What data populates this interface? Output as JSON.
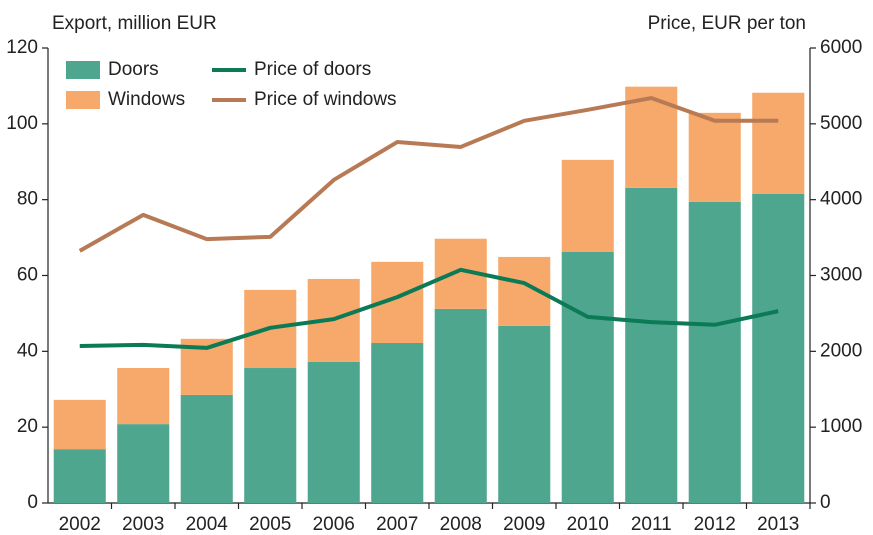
{
  "chart_data": {
    "type": "bar",
    "stacked": true,
    "y_label": "Export, million EUR",
    "y2_label": "Price, EUR per ton",
    "categories": [
      "2002",
      "2003",
      "2004",
      "2005",
      "2006",
      "2007",
      "2008",
      "2009",
      "2010",
      "2011",
      "2012",
      "2013"
    ],
    "series": [
      {
        "name": "Doors",
        "color": "#4ea68f",
        "values": [
          14.2,
          20.8,
          28.5,
          35.6,
          37.2,
          42.2,
          51.2,
          46.7,
          66.2,
          83.1,
          79.4,
          81.5
        ]
      },
      {
        "name": "Windows",
        "color": "#f6a96b",
        "values": [
          13.0,
          14.8,
          14.8,
          20.6,
          21.9,
          21.4,
          18.5,
          18.2,
          24.3,
          26.7,
          23.5,
          26.7
        ]
      },
      {
        "name": "Price of doors",
        "type": "line",
        "axis": "y2",
        "color": "#0b7a55",
        "values": [
          2070,
          2085,
          2045,
          2310,
          2425,
          2715,
          3075,
          2900,
          2455,
          2385,
          2350,
          2530
        ]
      },
      {
        "name": "Price of windows",
        "type": "line",
        "axis": "y2",
        "color": "#b87a55",
        "values": [
          3325,
          3800,
          3480,
          3510,
          4260,
          4760,
          4695,
          5040,
          5185,
          5340,
          5040,
          5040
        ]
      }
    ],
    "ylim": [
      0,
      120
    ],
    "yticks": [
      0,
      20,
      40,
      60,
      80,
      100,
      120
    ],
    "y2lim": [
      0,
      6000
    ],
    "y2ticks": [
      0,
      1000,
      2000,
      3000,
      4000,
      5000,
      6000
    ],
    "grid": false,
    "legend": "upper left"
  }
}
